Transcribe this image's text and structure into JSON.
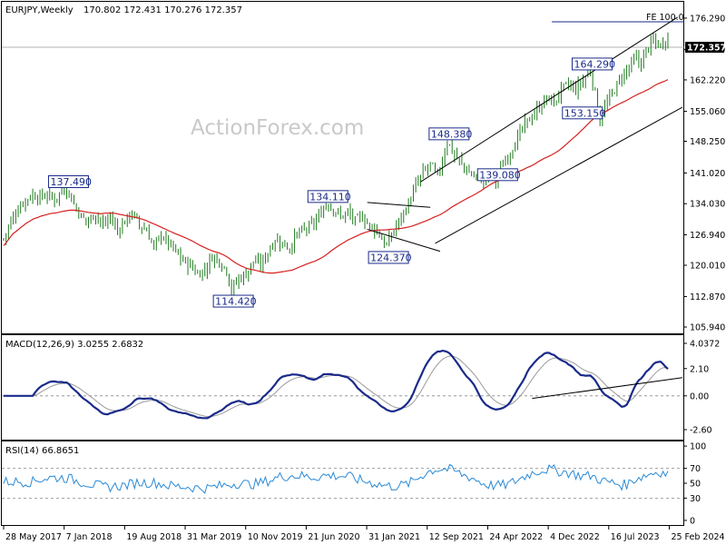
{
  "chart_data": [
    {
      "type": "candlestick",
      "header": {
        "symbol": "EURJPY,Weekly",
        "ohlc": "170.802 172.431 170.276 172.357"
      },
      "watermark": "ActionForex.com",
      "y_ticks": [
        "176.290",
        "169.110",
        "162.220",
        "155.060",
        "148.250",
        "141.020",
        "134.030",
        "126.940",
        "120.010",
        "112.870",
        "105.940"
      ],
      "y_tick_values": [
        176.29,
        169.11,
        162.22,
        155.06,
        148.25,
        141.02,
        134.03,
        126.94,
        120.01,
        112.87,
        105.94
      ],
      "ylim": [
        104.5,
        180.0
      ],
      "current_price": "172.357",
      "fe_label": "FE 100.0",
      "fe_value": 174.1,
      "annotations": [
        {
          "text": "137.490",
          "x": 26,
          "y": 137.49
        },
        {
          "text": "114.420",
          "x": 94,
          "y": 114.42
        },
        {
          "text": "134.110",
          "x": 133,
          "y": 134.11
        },
        {
          "text": "124.370",
          "x": 158,
          "y": 124.37
        },
        {
          "text": "148.380",
          "x": 183,
          "y": 148.38
        },
        {
          "text": "139.080",
          "x": 203,
          "y": 139.08
        },
        {
          "text": "164.290",
          "x": 242,
          "y": 164.29
        },
        {
          "text": "153.150",
          "x": 238,
          "y": 153.15
        }
      ],
      "close_path": [
        [
          0,
          126
        ],
        [
          3,
          130
        ],
        [
          6,
          133
        ],
        [
          9,
          135
        ],
        [
          12,
          136
        ],
        [
          15,
          135.5
        ],
        [
          18,
          136
        ],
        [
          21,
          135
        ],
        [
          24,
          137
        ],
        [
          26,
          137.5
        ],
        [
          29,
          134
        ],
        [
          32,
          131
        ],
        [
          35,
          130
        ],
        [
          38,
          132
        ],
        [
          41,
          129
        ],
        [
          44,
          131
        ],
        [
          47,
          128
        ],
        [
          50,
          130
        ],
        [
          53,
          132
        ],
        [
          56,
          129
        ],
        [
          59,
          128
        ],
        [
          62,
          124
        ],
        [
          65,
          127
        ],
        [
          68,
          125
        ],
        [
          71,
          123
        ],
        [
          74,
          121
        ],
        [
          77,
          120
        ],
        [
          80,
          118
        ],
        [
          83,
          119
        ],
        [
          86,
          122
        ],
        [
          89,
          121
        ],
        [
          92,
          119
        ],
        [
          94,
          114.4
        ],
        [
          97,
          117
        ],
        [
          100,
          118
        ],
        [
          103,
          121
        ],
        [
          106,
          120
        ],
        [
          109,
          123
        ],
        [
          112,
          126
        ],
        [
          115,
          125
        ],
        [
          118,
          124
        ],
        [
          121,
          127
        ],
        [
          124,
          128
        ],
        [
          127,
          129
        ],
        [
          130,
          131
        ],
        [
          133,
          134.1
        ],
        [
          136,
          133
        ],
        [
          139,
          131
        ],
        [
          142,
          132
        ],
        [
          145,
          130
        ],
        [
          148,
          131
        ],
        [
          151,
          129
        ],
        [
          154,
          128
        ],
        [
          156,
          126
        ],
        [
          158,
          124.4
        ],
        [
          161,
          128
        ],
        [
          164,
          131
        ],
        [
          167,
          134
        ],
        [
          170,
          138
        ],
        [
          173,
          141
        ],
        [
          176,
          143
        ],
        [
          179,
          140
        ],
        [
          181,
          144
        ],
        [
          183,
          148.4
        ],
        [
          186,
          145
        ],
        [
          189,
          143
        ],
        [
          192,
          141
        ],
        [
          195,
          140
        ],
        [
          198,
          139.5
        ],
        [
          201,
          141
        ],
        [
          203,
          139.1
        ],
        [
          206,
          143
        ],
        [
          209,
          146
        ],
        [
          212,
          149
        ],
        [
          215,
          152
        ],
        [
          218,
          154
        ],
        [
          221,
          156
        ],
        [
          224,
          158
        ],
        [
          227,
          157
        ],
        [
          230,
          160
        ],
        [
          233,
          161
        ],
        [
          236,
          160
        ],
        [
          239,
          162
        ],
        [
          242,
          164.3
        ],
        [
          244,
          159
        ],
        [
          246,
          153.2
        ],
        [
          249,
          157
        ],
        [
          252,
          160
        ],
        [
          255,
          163
        ],
        [
          258,
          165
        ],
        [
          261,
          167
        ],
        [
          263,
          166
        ],
        [
          265,
          169
        ],
        [
          268,
          171
        ],
        [
          271,
          170
        ],
        [
          274,
          172.4
        ]
      ],
      "upper_bound": [
        155.06,
        176.29
      ]
    },
    {
      "type": "line",
      "title": "MACD(12,26,9) 3.0255 2.6832",
      "y_ticks": [
        "4.0372",
        "2.10",
        "0.00",
        "-2.60"
      ],
      "y_tick_values": [
        4.04,
        2.1,
        0.0,
        -2.6
      ],
      "ylim": [
        -3.3,
        4.6
      ]
    },
    {
      "type": "line",
      "title": "RSI(14) 66.8651",
      "y_ticks": [
        "100",
        "70",
        "50",
        "30",
        "0"
      ],
      "y_tick_values": [
        100,
        70,
        50,
        30,
        0
      ],
      "ylim": [
        -5,
        105
      ]
    }
  ],
  "x_axis_labels": [
    "28 May 2017",
    "7 Jan 2018",
    "19 Aug 2018",
    "31 Mar 2019",
    "10 Nov 2019",
    "21 Jun 2020",
    "31 Jan 2021",
    "12 Sep 2021",
    "24 Apr 2022",
    "4 Dec 2022",
    "16 Jul 2023",
    "25 Feb 2024"
  ],
  "x_axis_positions": [
    0,
    32,
    64,
    96,
    128,
    160,
    192,
    224,
    256,
    288,
    320,
    352
  ]
}
